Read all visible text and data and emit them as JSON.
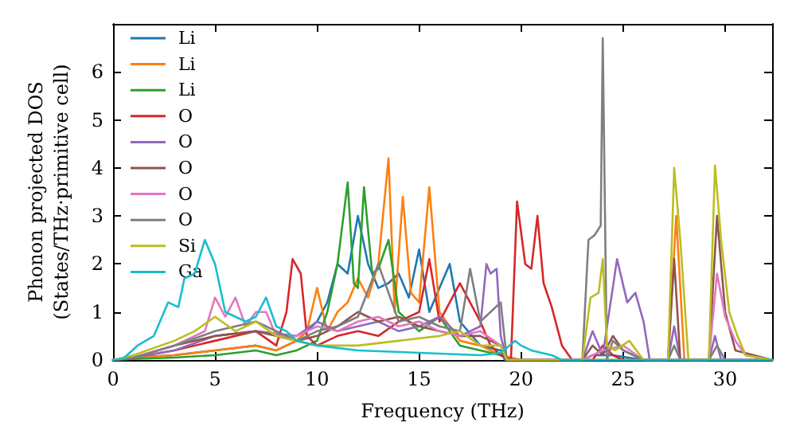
{
  "chart_data": {
    "type": "line",
    "xlabel": "Frequency (THz)",
    "ylabel": "Phonon projected DOS\n(States/THz·primitive cell)",
    "xlim": [
      0,
      32.3
    ],
    "ylim": [
      0,
      7
    ],
    "xticks": [
      0,
      5,
      10,
      15,
      20,
      25,
      30
    ],
    "yticks": [
      0,
      1,
      2,
      3,
      4,
      5,
      6
    ],
    "grid": false,
    "legend": "top left",
    "marker": "none",
    "line_style": "solid",
    "series": [
      {
        "name": "Li",
        "color": "#1f77b4",
        "x": [
          0,
          1,
          3,
          5,
          7,
          8,
          9,
          10,
          10.5,
          11,
          11.5,
          12,
          12.5,
          13,
          13.5,
          14,
          14.5,
          15,
          15.5,
          16,
          16.5,
          17,
          18,
          19,
          19.2,
          23,
          23.5,
          24.5,
          26,
          32.3
        ],
        "values": [
          0,
          0.05,
          0.1,
          0.2,
          0.3,
          0.2,
          0.4,
          0.8,
          1.2,
          2.0,
          1.8,
          3.0,
          2.0,
          1.5,
          1.6,
          1.8,
          1.3,
          2.3,
          1.0,
          1.5,
          2.0,
          0.8,
          0.3,
          0.2,
          0,
          0,
          0.1,
          0.1,
          0,
          0
        ]
      },
      {
        "name": "Li",
        "color": "#ff7f0e",
        "x": [
          0,
          1,
          3,
          5,
          7,
          8,
          9,
          9.5,
          10,
          10.5,
          11,
          11.5,
          12,
          12.5,
          13,
          13.5,
          13.8,
          14.2,
          14.6,
          15,
          15.5,
          16,
          17,
          18,
          19,
          20,
          27.2,
          27.6,
          28,
          32.3
        ],
        "values": [
          0,
          0.05,
          0.1,
          0.2,
          0.3,
          0.2,
          0.4,
          0.6,
          1.5,
          0.6,
          1.0,
          1.2,
          1.7,
          1.3,
          2.0,
          4.2,
          1.0,
          3.4,
          1.4,
          1.2,
          3.6,
          1.0,
          0.4,
          0.3,
          0.1,
          0,
          0,
          3.0,
          0,
          0
        ]
      },
      {
        "name": "Li",
        "color": "#2ca02c",
        "x": [
          0,
          1,
          3,
          5,
          7,
          8,
          9,
          10,
          10.5,
          11,
          11.5,
          11.8,
          12,
          12.3,
          12.7,
          13,
          13.5,
          14,
          15,
          16,
          17,
          18,
          19,
          19.5,
          32.3
        ],
        "values": [
          0,
          0.02,
          0.05,
          0.1,
          0.2,
          0.1,
          0.2,
          0.4,
          1.0,
          2.0,
          3.7,
          1.6,
          1.5,
          3.6,
          1.8,
          1.9,
          2.5,
          1.0,
          0.6,
          0.9,
          0.3,
          0.2,
          0.1,
          0,
          0
        ]
      },
      {
        "name": "O",
        "color": "#d62728",
        "x": [
          0,
          1,
          3,
          5,
          7,
          8,
          8.5,
          8.8,
          9.2,
          9.5,
          10,
          11,
          12,
          13,
          14,
          15,
          15.5,
          16,
          17,
          18,
          18.5,
          19,
          19.5,
          19.8,
          20.2,
          20.5,
          20.8,
          21.1,
          21.5,
          22,
          22.5,
          23.5,
          24,
          24.5,
          25,
          32.3
        ],
        "values": [
          0,
          0.05,
          0.2,
          0.4,
          0.6,
          0.3,
          1.0,
          2.1,
          1.8,
          0.5,
          0.3,
          0.5,
          0.6,
          0.5,
          0.8,
          1.0,
          2.1,
          0.8,
          1.6,
          0.8,
          0.3,
          0.1,
          0,
          3.3,
          2.0,
          1.9,
          3.0,
          1.6,
          1.1,
          0.3,
          0,
          0,
          0.3,
          0.1,
          0,
          0
        ]
      },
      {
        "name": "O",
        "color": "#9467bd",
        "x": [
          0,
          1,
          3,
          5,
          7,
          9,
          10,
          11,
          12,
          13,
          14,
          15,
          16,
          17,
          18,
          18.3,
          18.5,
          18.8,
          19,
          19.3,
          23,
          23.5,
          24,
          24.7,
          25.2,
          25.6,
          26,
          26.3,
          27.2,
          27.5,
          27.8,
          29.2,
          29.5,
          29.8,
          32.3
        ],
        "values": [
          0,
          0.05,
          0.2,
          0.5,
          0.6,
          0.5,
          0.8,
          0.6,
          0.7,
          0.8,
          0.6,
          0.7,
          0.9,
          0.5,
          0.7,
          2.0,
          1.8,
          1.9,
          0.5,
          0,
          0,
          0.6,
          0.1,
          2.1,
          1.2,
          1.4,
          0.8,
          0,
          0,
          0.7,
          0,
          0,
          0.5,
          0,
          0
        ]
      },
      {
        "name": "O",
        "color": "#8c564b",
        "x": [
          0,
          1,
          3,
          5,
          7,
          9,
          10,
          11,
          12,
          13,
          14,
          15,
          16,
          17,
          18,
          19,
          19.3,
          23,
          23.5,
          24,
          24.5,
          25,
          26,
          27.2,
          27.5,
          27.8,
          29.2,
          29.6,
          30,
          30.5,
          32.3
        ],
        "values": [
          0,
          0.05,
          0.3,
          0.5,
          0.6,
          0.4,
          0.5,
          0.7,
          1.0,
          0.8,
          0.9,
          0.7,
          0.6,
          0.5,
          0.5,
          0.3,
          0,
          0,
          0.3,
          0.1,
          0.5,
          0.2,
          0,
          0,
          2.1,
          0,
          0,
          3.0,
          1.0,
          0.2,
          0
        ]
      },
      {
        "name": "O",
        "color": "#e377c2",
        "x": [
          0,
          1,
          3,
          4.5,
          5,
          5.5,
          6,
          6.5,
          7,
          7.5,
          8,
          9,
          10,
          11,
          12,
          13,
          14,
          15,
          16,
          17,
          18,
          19,
          19.3,
          23,
          24,
          25,
          26,
          29.2,
          29.6,
          30,
          30.5,
          31,
          32.3
        ],
        "values": [
          0,
          0.05,
          0.3,
          0.6,
          1.3,
          0.9,
          1.3,
          0.7,
          1.0,
          1.0,
          0.5,
          0.5,
          0.7,
          0.6,
          0.8,
          0.9,
          0.7,
          0.8,
          0.6,
          0.5,
          0.6,
          0.3,
          0,
          0,
          0.2,
          0.3,
          0,
          0,
          1.8,
          0.9,
          0.4,
          0.1,
          0
        ]
      },
      {
        "name": "O",
        "color": "#7f7f7f",
        "x": [
          0,
          1,
          3,
          5,
          7,
          9,
          10,
          11,
          12,
          13,
          14,
          15,
          16,
          17,
          17.5,
          18,
          18.5,
          19,
          19.3,
          23,
          23.3,
          23.6,
          23.9,
          24,
          24.2,
          24.5,
          25,
          26,
          27.2,
          27.5,
          27.8,
          29.2,
          29.6,
          30,
          32.3
        ],
        "values": [
          0,
          0.05,
          0.3,
          0.6,
          0.8,
          0.4,
          0.6,
          0.7,
          0.9,
          2.0,
          0.8,
          0.9,
          0.7,
          0.6,
          1.9,
          0.8,
          1.0,
          1.2,
          0,
          0,
          2.5,
          2.6,
          2.8,
          6.7,
          0,
          0.4,
          0.2,
          0,
          0,
          0.3,
          0,
          0,
          0.3,
          0,
          0
        ]
      },
      {
        "name": "Si",
        "color": "#bcbd22",
        "x": [
          0,
          1,
          3,
          4,
          5,
          6,
          7,
          8,
          9,
          10,
          12,
          14,
          16,
          17,
          18,
          19,
          19.3,
          23,
          23.4,
          23.8,
          24,
          24.2,
          24.6,
          25.3,
          26,
          27.2,
          27.5,
          27.8,
          28.2,
          29.2,
          29.5,
          29.8,
          30.2,
          30.6,
          31,
          32.3
        ],
        "values": [
          0,
          0.1,
          0.4,
          0.6,
          0.9,
          0.6,
          0.8,
          0.5,
          0.4,
          0.3,
          0.3,
          0.4,
          0.5,
          0.6,
          0.3,
          0.3,
          0,
          0,
          1.3,
          1.4,
          2.1,
          0.3,
          0.2,
          0.4,
          0,
          0,
          4.0,
          2.5,
          0,
          0,
          4.05,
          2.5,
          1.0,
          0.5,
          0.1,
          0
        ]
      },
      {
        "name": "Ga",
        "color": "#17becf",
        "x": [
          0,
          0.5,
          1.2,
          2,
          2.7,
          3.2,
          3.5,
          4,
          4.5,
          4.8,
          5,
          5.5,
          6,
          6.5,
          7,
          7.5,
          8,
          8.5,
          9,
          10,
          12,
          15,
          18,
          19,
          19.7,
          20,
          20.5,
          21.5,
          22,
          32.3
        ],
        "values": [
          0,
          0.03,
          0.3,
          0.5,
          1.2,
          1.1,
          1.7,
          1.8,
          2.5,
          2.2,
          2.0,
          1.0,
          0.9,
          0.8,
          0.9,
          1.3,
          0.7,
          0.6,
          0.4,
          0.3,
          0.2,
          0.15,
          0.1,
          0.15,
          0.4,
          0.3,
          0.2,
          0.1,
          0,
          0
        ]
      }
    ]
  }
}
